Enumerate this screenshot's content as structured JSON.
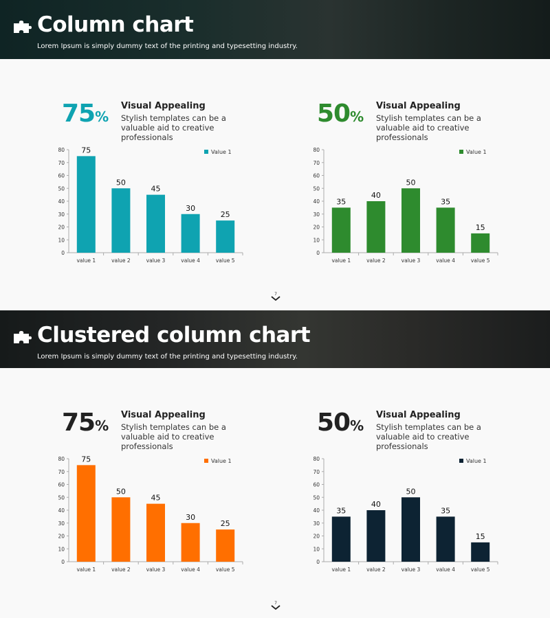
{
  "slides": [
    {
      "title": "Column chart",
      "subtitle": "Lorem Ipsum is simply dummy text of the printing and typesetting industry.",
      "page_number": "7",
      "panels": [
        {
          "percent": "75",
          "percent_unit": "%",
          "percent_color": "#0fa3b1",
          "heading": "Visual Appealing",
          "body": "Stylish templates can be a valuable aid to  creative professionals"
        },
        {
          "percent": "50",
          "percent_unit": "%",
          "percent_color": "#2e8b2e",
          "heading": "Visual Appealing",
          "body": "Stylish templates can be a valuable aid to  creative professionals"
        }
      ]
    },
    {
      "title": "Clustered column chart",
      "subtitle": "Lorem Ipsum is simply dummy text of the printing and typesetting industry.",
      "page_number": "7",
      "panels": [
        {
          "percent": "75",
          "percent_unit": "%",
          "percent_color": "#222222",
          "heading": "Visual Appealing",
          "body": "Stylish templates can be a valuable aid to  creative professionals"
        },
        {
          "percent": "50",
          "percent_unit": "%",
          "percent_color": "#222222",
          "heading": "Visual Appealing",
          "body": "Stylish templates can be a valuable aid to  creative professionals"
        }
      ]
    }
  ],
  "icons": {
    "banner": "puzzle-piece-icon",
    "nav": "chevron-down-icon"
  },
  "chart_data": [
    {
      "type": "bar",
      "categories": [
        "value 1",
        "value 2",
        "value 3",
        "value 4",
        "value 5"
      ],
      "series": [
        {
          "name": "Value 1",
          "values": [
            75,
            50,
            45,
            30,
            25
          ],
          "color": "#0fa3b1"
        }
      ],
      "ylim": [
        0,
        80
      ],
      "yticks": [
        0,
        10,
        20,
        30,
        40,
        50,
        60,
        70,
        80
      ],
      "data_labels": true,
      "legend": "top-right",
      "grid": false
    },
    {
      "type": "bar",
      "categories": [
        "value 1",
        "value 2",
        "value 3",
        "value 4",
        "value 5"
      ],
      "series": [
        {
          "name": "Value 1",
          "values": [
            35,
            40,
            50,
            35,
            15
          ],
          "color": "#2e8b2e"
        }
      ],
      "ylim": [
        0,
        80
      ],
      "yticks": [
        0,
        10,
        20,
        30,
        40,
        50,
        60,
        70,
        80
      ],
      "data_labels": true,
      "legend": "top-right",
      "grid": false
    },
    {
      "type": "bar",
      "categories": [
        "value 1",
        "value 2",
        "value 3",
        "value 4",
        "value 5"
      ],
      "series": [
        {
          "name": "Value 1",
          "values": [
            75,
            50,
            45,
            30,
            25
          ],
          "color": "#ff6f00"
        }
      ],
      "ylim": [
        0,
        80
      ],
      "yticks": [
        0,
        10,
        20,
        30,
        40,
        50,
        60,
        70,
        80
      ],
      "data_labels": true,
      "legend": "top-right",
      "grid": false
    },
    {
      "type": "bar",
      "categories": [
        "value 1",
        "value 2",
        "value 3",
        "value 4",
        "value 5"
      ],
      "series": [
        {
          "name": "Value 1",
          "values": [
            35,
            40,
            50,
            35,
            15
          ],
          "color": "#0d2333"
        }
      ],
      "ylim": [
        0,
        80
      ],
      "yticks": [
        0,
        10,
        20,
        30,
        40,
        50,
        60,
        70,
        80
      ],
      "data_labels": true,
      "legend": "top-right",
      "grid": false
    }
  ]
}
